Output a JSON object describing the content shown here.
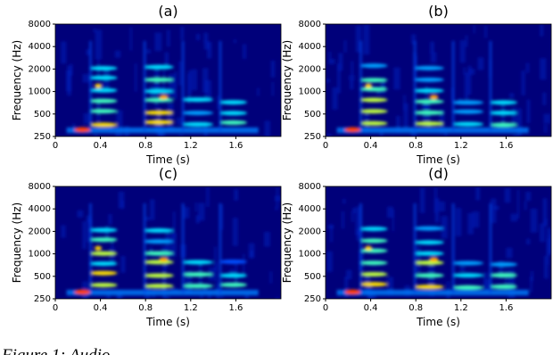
{
  "chart_data": [
    {
      "type": "spectrogram",
      "title": "(a)",
      "xlabel": "Time (s)",
      "ylabel": "Frequency (Hz)",
      "xlim": [
        0,
        2.0
      ],
      "xticks": [
        0,
        0.4,
        0.8,
        1.2,
        1.6
      ],
      "ylim": [
        250,
        8000
      ],
      "yticks": [
        250,
        500,
        1000,
        2000,
        4000,
        8000
      ],
      "log_y": true
    },
    {
      "type": "spectrogram",
      "title": "(b)",
      "xlabel": "Time (s)",
      "ylabel": "Frequency (Hz)",
      "xlim": [
        0,
        2.0
      ],
      "xticks": [
        0,
        0.4,
        0.8,
        1.2,
        1.6
      ],
      "ylim": [
        250,
        8000
      ],
      "yticks": [
        250,
        500,
        1000,
        2000,
        4000,
        8000
      ],
      "log_y": true
    },
    {
      "type": "spectrogram",
      "title": "(c)",
      "xlabel": "Time (s)",
      "ylabel": "Frequency (Hz)",
      "xlim": [
        0,
        2.0
      ],
      "xticks": [
        0,
        0.4,
        0.8,
        1.2,
        1.6
      ],
      "ylim": [
        250,
        8000
      ],
      "yticks": [
        250,
        500,
        1000,
        2000,
        4000,
        8000
      ],
      "log_y": true
    },
    {
      "type": "spectrogram",
      "title": "(d)",
      "xlabel": "Time (s)",
      "ylabel": "Frequency (Hz)",
      "xlim": [
        0,
        2.0
      ],
      "xticks": [
        0,
        0.4,
        0.8,
        1.2,
        1.6
      ],
      "ylim": [
        250,
        8000
      ],
      "yticks": [
        250,
        500,
        1000,
        2000,
        4000,
        8000
      ],
      "log_y": true
    }
  ],
  "caption": "Figure 1: Audio"
}
